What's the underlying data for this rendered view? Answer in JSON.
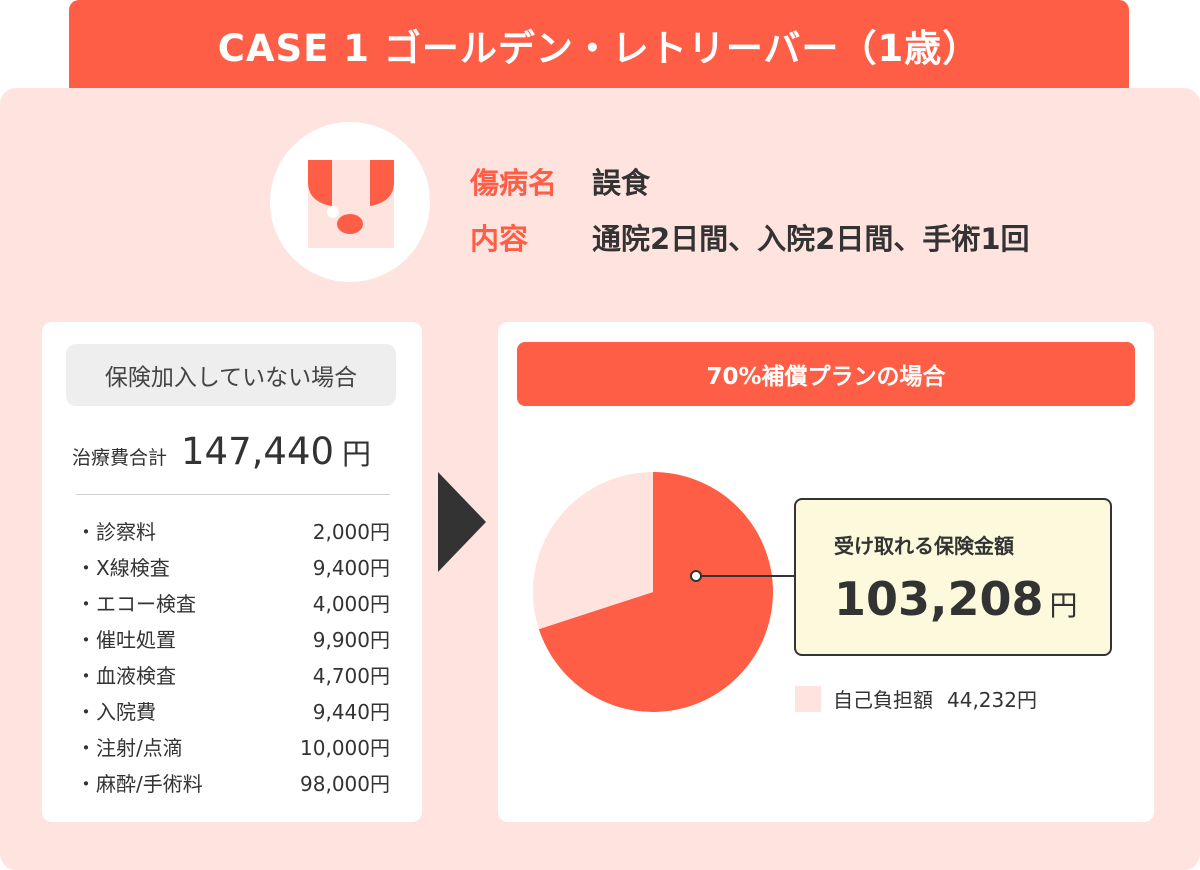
{
  "header": {
    "title": "CASE 1 ゴールデン・レトリーバー（1歳）"
  },
  "case": {
    "disease_label": "傷病名",
    "disease_value": "誤食",
    "content_label": "内容",
    "content_value": "通院2日間、入院2日間、手術1回",
    "avatar_icon": "dog-face-icon"
  },
  "uninsured": {
    "title": "保険加入していない場合",
    "total_label": "治療費合計",
    "total_value": "147,440",
    "total_unit": "円",
    "items": [
      {
        "name": "・診察料",
        "amount": "2,000円"
      },
      {
        "name": "・X線検査",
        "amount": "9,400円"
      },
      {
        "name": "・エコー検査",
        "amount": "4,000円"
      },
      {
        "name": "・催吐処置",
        "amount": "9,900円"
      },
      {
        "name": "・血液検査",
        "amount": "4,700円"
      },
      {
        "name": "・入院費",
        "amount": "9,440円"
      },
      {
        "name": "・注射/点滴",
        "amount": "10,000円"
      },
      {
        "name": "・麻酔/手術料",
        "amount": "98,000円"
      }
    ]
  },
  "plan": {
    "title": "70%補償プランの場合",
    "receive_label": "受け取れる保険金額",
    "receive_value": "103,208",
    "receive_unit": "円",
    "self_label": "自己負担額",
    "self_value": "44,232円"
  },
  "colors": {
    "accent": "#ff5e46",
    "panel": "#ffe3df",
    "callout": "#fcf9dc",
    "text": "#333333"
  },
  "chart_data": {
    "type": "pie",
    "slices": [
      {
        "label": "受け取れる保険金額",
        "value": 103208,
        "color": "#ff5e46"
      },
      {
        "label": "自己負担額",
        "value": 44232,
        "color": "#ffe3df"
      }
    ]
  }
}
